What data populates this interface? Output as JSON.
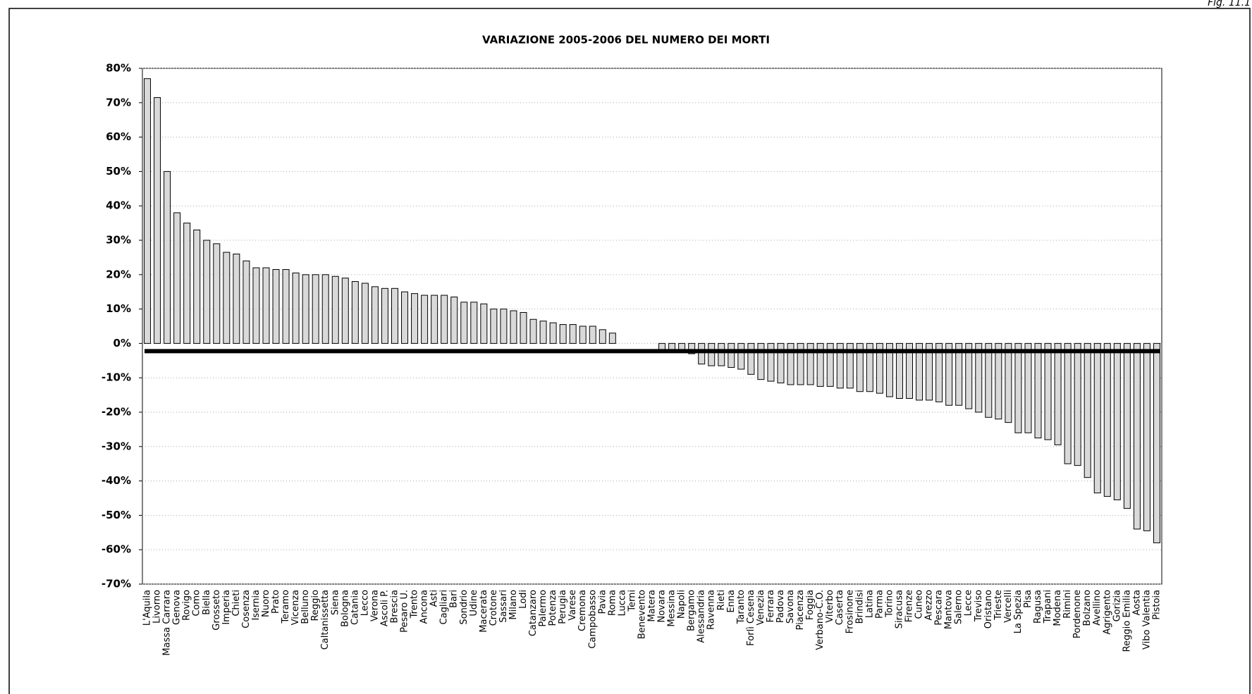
{
  "fig_label": "Fig. 11.1",
  "chart_data": {
    "type": "bar",
    "title": "VARIAZIONE 2005-2006 DEL NUMERO DEI MORTI",
    "categories": [
      "L'Aquila",
      "Livorno",
      "Massa Carrara",
      "Genova",
      "Rovigo",
      "Como",
      "Biella",
      "Grosseto",
      "Imperia",
      "Chieti",
      "Cosenza",
      "Isernia",
      "Nuoro",
      "Prato",
      "Teramo",
      "Vicenza",
      "Belluno",
      "Reggio",
      "Caltanissetta",
      "Siena",
      "Bologna",
      "Catania",
      "Lecco",
      "Verona",
      "Ascoli P.",
      "Brescia",
      "Pesaro U.",
      "Trento",
      "Ancona",
      "Asti",
      "Cagliari",
      "Bari",
      "Sondrio",
      "Udine",
      "Macerata",
      "Crotone",
      "Sassari",
      "Milano",
      "Lodi",
      "Catanzaro",
      "Palermo",
      "Potenza",
      "Perugia",
      "Varese",
      "Cremona",
      "Campobasso",
      "Pavia",
      "Roma",
      "Lucca",
      "Terni",
      "Benevento",
      "Matera",
      "Novara",
      "Messina",
      "Napoli",
      "Bergamo",
      "Alessandria",
      "Ravenna",
      "Rieti",
      "Enna",
      "Taranto",
      "Forlì Cesena",
      "Venezia",
      "Ferrara",
      "Padova",
      "Savona",
      "Piacenza",
      "Foggia",
      "Verbano-C.O.",
      "Viterbo",
      "Caserta",
      "Frosinone",
      "Brindisi",
      "Latina",
      "Parma",
      "Torino",
      "Siracusa",
      "Firenze",
      "Cuneo",
      "Arezzo",
      "Pescara",
      "Mantova",
      "Salerno",
      "Lecce",
      "Treviso",
      "Oristano",
      "Trieste",
      "Vercelli",
      "La Spezia",
      "Pisa",
      "Ragusa",
      "Trapani",
      "Modena",
      "Rimini",
      "Pordenone",
      "Bolzano",
      "Avellino",
      "Agrigento",
      "Gorizia",
      "Reggio Emilia",
      "Aosta",
      "Vibo Valentia",
      "Pistoia"
    ],
    "values": [
      77,
      71.5,
      50,
      38,
      35,
      33,
      30,
      29,
      26.5,
      26,
      24,
      22,
      22,
      21.5,
      21.5,
      20.5,
      20,
      20,
      20,
      19.5,
      19,
      18,
      17.5,
      16.5,
      16,
      16,
      15,
      14.5,
      14,
      14,
      14,
      13.5,
      12,
      12,
      11.5,
      10,
      10,
      9.5,
      9,
      7,
      6.5,
      6,
      5.5,
      5.5,
      5,
      5,
      4,
      3,
      0,
      0,
      0,
      0,
      -2,
      -2,
      -2,
      -3,
      -6,
      -6.5,
      -6.5,
      -7,
      -7.5,
      -9,
      -10.5,
      -11,
      -11.5,
      -12,
      -12,
      -12,
      -12.5,
      -12.5,
      -13,
      -13,
      -14,
      -14,
      -14.5,
      -15.5,
      -16,
      -16,
      -16.5,
      -16.5,
      -17,
      -18,
      -18,
      -19,
      -20,
      -21.5,
      -22,
      -23,
      -26,
      -26,
      -27.5,
      -28,
      -29.5,
      -35,
      -35.5,
      -39,
      -43.5,
      -44.5,
      -45.5,
      -48,
      -54,
      -54.5,
      -58
    ],
    "color": "#d9d9d9",
    "ylim": [
      -70,
      80
    ],
    "yticks": [
      {
        "value": 80,
        "label": "80%"
      },
      {
        "value": 70,
        "label": "70%"
      },
      {
        "value": 60,
        "label": "60%"
      },
      {
        "value": 50,
        "label": "50%"
      },
      {
        "value": 40,
        "label": "40%"
      },
      {
        "value": 30,
        "label": "30%"
      },
      {
        "value": 20,
        "label": "20%"
      },
      {
        "value": 10,
        "label": "10%"
      },
      {
        "value": 0,
        "label": "0%"
      },
      {
        "value": -10,
        "label": "-10%"
      },
      {
        "value": -20,
        "label": "-20%"
      },
      {
        "value": -30,
        "label": "-30%"
      },
      {
        "value": -40,
        "label": "-40%"
      },
      {
        "value": -50,
        "label": "-50%"
      },
      {
        "value": -60,
        "label": "-60%"
      },
      {
        "value": -70,
        "label": "-70%"
      }
    ],
    "grid": true
  }
}
